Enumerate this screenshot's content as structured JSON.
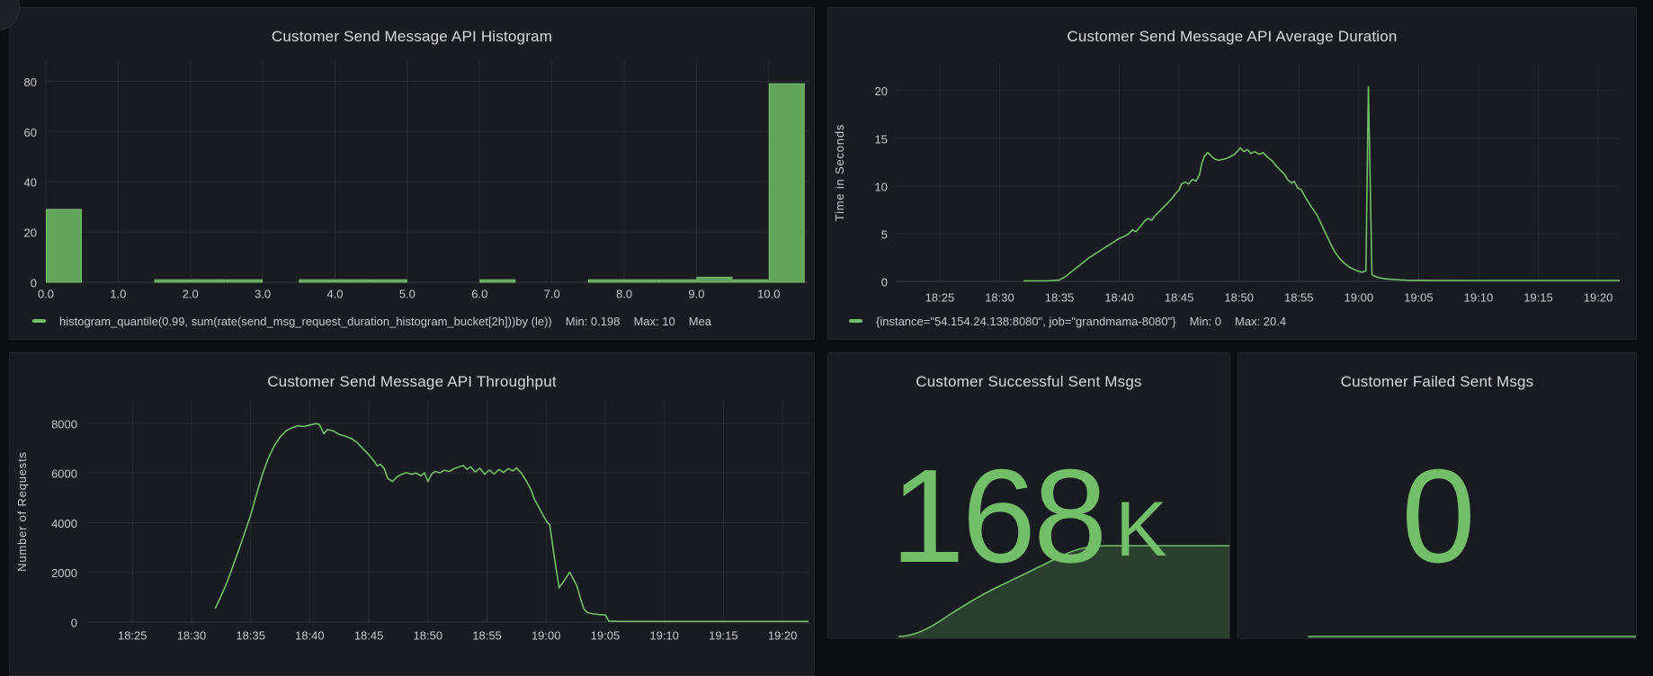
{
  "colors": {
    "page_bg": "#0c0d10",
    "panel_bg": "#181b1f",
    "title_text": "#d8d9da",
    "tick_text": "#c7c8cc",
    "grid": "rgba(204,204,220,0.09)",
    "axis_line": "rgba(204,204,220,0.18)",
    "series_green": "#73bf69",
    "bar_fill": "#62a45c",
    "bar_stroke": "#7abf6e",
    "area_fill": "rgba(115,191,105,0.22)"
  },
  "chart_data": [
    {
      "type": "bar",
      "title": "Customer Send Message API Histogram",
      "xlabel": "",
      "ylabel": "",
      "bucket_size": 0.5,
      "bars": [
        [
          0,
          29
        ],
        [
          1.5,
          1
        ],
        [
          2,
          1
        ],
        [
          2.5,
          1
        ],
        [
          3.5,
          1
        ],
        [
          4,
          1
        ],
        [
          4.5,
          1
        ],
        [
          6,
          1
        ],
        [
          7.5,
          1
        ],
        [
          8,
          1
        ],
        [
          8.5,
          1
        ],
        [
          9,
          2
        ],
        [
          9.5,
          1
        ],
        [
          10,
          79
        ]
      ],
      "xtick_values": [
        0,
        1,
        2,
        3,
        4,
        5,
        6,
        7,
        8,
        9,
        10
      ],
      "xtick_labels": [
        "0.0",
        "1.0",
        "2.0",
        "3.0",
        "4.0",
        "5.0",
        "6.0",
        "7.0",
        "8.0",
        "9.0",
        "10.0"
      ],
      "ytick_values": [
        0,
        20,
        40,
        60,
        80
      ],
      "ytick_labels": [
        "0",
        "20",
        "40",
        "60",
        "80"
      ],
      "xlim": [
        0,
        10.55
      ],
      "ylim": [
        0,
        88
      ],
      "grid": true,
      "legend_position": "bottom",
      "legend": [
        "histogram_quantile(0.99, sum(rate(send_msg_request_duration_histogram_bucket[2h]))by (le))",
        "Min: 0.198",
        "Max: 10",
        "Mea"
      ]
    },
    {
      "type": "line",
      "title": "Customer Send Message API Average Duration",
      "xlabel": "",
      "ylabel": "Time in Seconds",
      "xtick_minutes": [
        25,
        30,
        35,
        40,
        45,
        50,
        55,
        60,
        65,
        70,
        75,
        80
      ],
      "xtick_labels": [
        "18:25",
        "18:30",
        "18:35",
        "18:40",
        "18:45",
        "18:50",
        "18:55",
        "19:00",
        "19:05",
        "19:10",
        "19:15",
        "19:20"
      ],
      "ytick_values": [
        0,
        5,
        10,
        15,
        20
      ],
      "ytick_labels": [
        "0",
        "5",
        "10",
        "15",
        "20"
      ],
      "xlim_minutes": [
        21.4,
        81.8
      ],
      "ylim": [
        0,
        22.8
      ],
      "grid": true,
      "legend_position": "bottom",
      "legend": [
        "{instance=\"54.154.24.138:8080\", job=\"grandmama-8080\"}",
        "Min: 0",
        "Max: 20.4"
      ],
      "points": [
        [
          32,
          0.05
        ],
        [
          34,
          0.06
        ],
        [
          35,
          0.15
        ],
        [
          35.5,
          0.5
        ],
        [
          36,
          1.0
        ],
        [
          36.5,
          1.5
        ],
        [
          37,
          2.0
        ],
        [
          37.5,
          2.5
        ],
        [
          38,
          2.9
        ],
        [
          38.5,
          3.3
        ],
        [
          39,
          3.7
        ],
        [
          39.5,
          4.1
        ],
        [
          40,
          4.5
        ],
        [
          40.4,
          4.7
        ],
        [
          40.8,
          5.0
        ],
        [
          41.1,
          5.4
        ],
        [
          41.4,
          5.2
        ],
        [
          41.8,
          5.8
        ],
        [
          42.1,
          6.3
        ],
        [
          42.4,
          6.6
        ],
        [
          42.7,
          6.4
        ],
        [
          43,
          6.9
        ],
        [
          43.4,
          7.4
        ],
        [
          43.8,
          7.9
        ],
        [
          44.1,
          8.3
        ],
        [
          44.4,
          8.7
        ],
        [
          44.7,
          9.2
        ],
        [
          45,
          9.6
        ],
        [
          45.2,
          10.2
        ],
        [
          45.5,
          10.4
        ],
        [
          45.8,
          10.2
        ],
        [
          46.1,
          10.7
        ],
        [
          46.4,
          10.5
        ],
        [
          46.7,
          11.2
        ],
        [
          46.9,
          12.4
        ],
        [
          47.1,
          13.1
        ],
        [
          47.4,
          13.5
        ],
        [
          47.7,
          13.1
        ],
        [
          48,
          12.8
        ],
        [
          48.3,
          12.7
        ],
        [
          48.7,
          12.8
        ],
        [
          49,
          12.9
        ],
        [
          49.3,
          13.1
        ],
        [
          49.6,
          13.3
        ],
        [
          49.9,
          13.7
        ],
        [
          50.1,
          14.0
        ],
        [
          50.4,
          13.6
        ],
        [
          50.7,
          13.8
        ],
        [
          51,
          13.4
        ],
        [
          51.3,
          13.6
        ],
        [
          51.7,
          13.3
        ],
        [
          52,
          13.5
        ],
        [
          52.4,
          13.0
        ],
        [
          52.8,
          12.6
        ],
        [
          53.1,
          12.1
        ],
        [
          53.5,
          11.6
        ],
        [
          53.8,
          11.2
        ],
        [
          54.1,
          10.6
        ],
        [
          54.4,
          10.3
        ],
        [
          54.6,
          10.5
        ],
        [
          54.9,
          9.8
        ],
        [
          55.2,
          9.6
        ],
        [
          55.5,
          8.9
        ],
        [
          55.8,
          8.3
        ],
        [
          56.1,
          7.7
        ],
        [
          56.5,
          7.0
        ],
        [
          56.8,
          6.2
        ],
        [
          57.1,
          5.4
        ],
        [
          57.4,
          4.6
        ],
        [
          57.7,
          3.8
        ],
        [
          58,
          3.1
        ],
        [
          58.4,
          2.4
        ],
        [
          58.8,
          1.9
        ],
        [
          59.2,
          1.5
        ],
        [
          59.6,
          1.25
        ],
        [
          60,
          1.05
        ],
        [
          60.3,
          0.95
        ],
        [
          60.6,
          1.1
        ],
        [
          60.8,
          20.4
        ],
        [
          61.1,
          0.7
        ],
        [
          61.4,
          0.5
        ],
        [
          61.8,
          0.35
        ],
        [
          62.3,
          0.25
        ],
        [
          63,
          0.18
        ],
        [
          64,
          0.12
        ],
        [
          66,
          0.1
        ],
        [
          70,
          0.09
        ],
        [
          75,
          0.09
        ],
        [
          80,
          0.09
        ],
        [
          81.8,
          0.09
        ]
      ]
    },
    {
      "type": "line",
      "title": "Customer Send Message API Throughput",
      "xlabel": "",
      "ylabel": "Number of Requests",
      "xtick_minutes": [
        25,
        30,
        35,
        40,
        45,
        50,
        55,
        60,
        65,
        70,
        75,
        80
      ],
      "xtick_labels": [
        "18:25",
        "18:30",
        "18:35",
        "18:40",
        "18:45",
        "18:50",
        "18:55",
        "19:00",
        "19:05",
        "19:10",
        "19:15",
        "19:20"
      ],
      "ytick_values": [
        0,
        2000,
        4000,
        6000,
        8000
      ],
      "ytick_labels": [
        "0",
        "2000",
        "4000",
        "6000",
        "8000"
      ],
      "xlim_minutes": [
        21.1,
        82.2
      ],
      "ylim": [
        0,
        8900
      ],
      "grid": true,
      "points": [
        [
          32,
          540
        ],
        [
          32.5,
          1050
        ],
        [
          33,
          1600
        ],
        [
          33.5,
          2250
        ],
        [
          34,
          2900
        ],
        [
          34.5,
          3600
        ],
        [
          35,
          4300
        ],
        [
          35.5,
          5150
        ],
        [
          36,
          5950
        ],
        [
          36.5,
          6600
        ],
        [
          37,
          7100
        ],
        [
          37.5,
          7450
        ],
        [
          38,
          7700
        ],
        [
          38.5,
          7820
        ],
        [
          39,
          7900
        ],
        [
          39.5,
          7870
        ],
        [
          40,
          7930
        ],
        [
          40.5,
          7990
        ],
        [
          40.8,
          7960
        ],
        [
          41.2,
          7580
        ],
        [
          41.5,
          7750
        ],
        [
          42,
          7690
        ],
        [
          42.5,
          7550
        ],
        [
          43,
          7480
        ],
        [
          43.5,
          7390
        ],
        [
          44,
          7230
        ],
        [
          44.5,
          6980
        ],
        [
          45,
          6740
        ],
        [
          45.4,
          6500
        ],
        [
          45.7,
          6290
        ],
        [
          46,
          6350
        ],
        [
          46.3,
          6180
        ],
        [
          46.6,
          5780
        ],
        [
          47,
          5660
        ],
        [
          47.4,
          5850
        ],
        [
          47.8,
          5950
        ],
        [
          48.2,
          6010
        ],
        [
          48.6,
          5950
        ],
        [
          49,
          6000
        ],
        [
          49.4,
          5890
        ],
        [
          49.7,
          6010
        ],
        [
          50,
          5660
        ],
        [
          50.3,
          5950
        ],
        [
          50.6,
          6060
        ],
        [
          51,
          6010
        ],
        [
          51.4,
          6110
        ],
        [
          51.8,
          6060
        ],
        [
          52.2,
          6170
        ],
        [
          52.6,
          6240
        ],
        [
          53,
          6300
        ],
        [
          53.3,
          6140
        ],
        [
          53.6,
          6250
        ],
        [
          54,
          6040
        ],
        [
          54.4,
          6190
        ],
        [
          54.8,
          5950
        ],
        [
          55.2,
          6120
        ],
        [
          55.6,
          5960
        ],
        [
          56,
          6140
        ],
        [
          56.4,
          6020
        ],
        [
          56.8,
          6180
        ],
        [
          57.2,
          6080
        ],
        [
          57.5,
          6200
        ],
        [
          57.9,
          6000
        ],
        [
          58.3,
          5700
        ],
        [
          58.7,
          5350
        ],
        [
          59,
          4950
        ],
        [
          59.4,
          4600
        ],
        [
          59.8,
          4250
        ],
        [
          60.1,
          4000
        ],
        [
          60.3,
          3930
        ],
        [
          60.7,
          2600
        ],
        [
          61.1,
          1380
        ],
        [
          61.6,
          1720
        ],
        [
          62,
          2010
        ],
        [
          62.3,
          1730
        ],
        [
          62.6,
          1460
        ],
        [
          62.9,
          950
        ],
        [
          63.2,
          520
        ],
        [
          63.5,
          380
        ],
        [
          64,
          330
        ],
        [
          64.5,
          300
        ],
        [
          65,
          290
        ],
        [
          65.3,
          40
        ],
        [
          66,
          28
        ],
        [
          70,
          25
        ],
        [
          75,
          25
        ],
        [
          80,
          25
        ],
        [
          82.2,
          25
        ]
      ]
    },
    {
      "type": "stat",
      "title": "Customer Successful Sent Msgs",
      "value": "168",
      "unit": "K",
      "sparkline_xlim_minutes": [
        21.5,
        81.5
      ],
      "sparkline_ylim": [
        0,
        168
      ],
      "sparkline_points": [
        [
          32,
          0
        ],
        [
          33,
          1
        ],
        [
          34,
          3.5
        ],
        [
          35,
          7.5
        ],
        [
          36,
          13
        ],
        [
          37,
          19.5
        ],
        [
          38,
          27
        ],
        [
          39,
          35
        ],
        [
          40,
          43
        ],
        [
          41,
          51
        ],
        [
          42,
          58.5
        ],
        [
          43,
          66
        ],
        [
          44,
          73
        ],
        [
          45,
          80
        ],
        [
          46,
          86.5
        ],
        [
          47,
          92.5
        ],
        [
          48,
          98.5
        ],
        [
          49,
          104.5
        ],
        [
          50,
          110.5
        ],
        [
          51,
          116.5
        ],
        [
          52,
          122.5
        ],
        [
          53,
          128.5
        ],
        [
          54,
          134.5
        ],
        [
          55,
          140.5
        ],
        [
          56,
          146.5
        ],
        [
          57,
          152.5
        ],
        [
          58,
          157.5
        ],
        [
          59,
          161.5
        ],
        [
          60,
          164.5
        ],
        [
          61,
          166.5
        ],
        [
          62,
          167.5
        ],
        [
          63,
          168
        ],
        [
          81.5,
          168
        ]
      ]
    },
    {
      "type": "stat",
      "title": "Customer Failed Sent Msgs",
      "value": "0",
      "unit": "",
      "sparkline_xlim_minutes": [
        21.5,
        81.5
      ],
      "sparkline_ylim": [
        0,
        168
      ],
      "sparkline_points": [
        [
          32,
          0
        ],
        [
          81.5,
          0
        ]
      ]
    }
  ]
}
